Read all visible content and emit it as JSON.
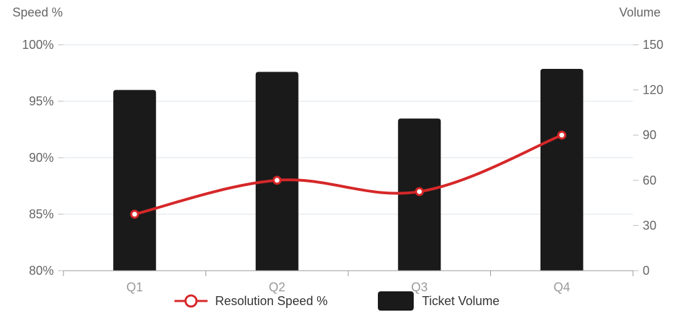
{
  "chart_data": {
    "type": "bar",
    "categories": [
      "Q1",
      "Q2",
      "Q3",
      "Q4"
    ],
    "y_left_title": "Speed %",
    "y_right_title": "Volume",
    "y_left_ticks": [
      "80%",
      "85%",
      "90%",
      "95%",
      "100%"
    ],
    "y_right_ticks": [
      "0",
      "30",
      "60",
      "90",
      "120",
      "150"
    ],
    "y_left_range": [
      80,
      100
    ],
    "y_right_range": [
      0,
      150
    ],
    "grid": true,
    "legend_position": "bottom",
    "series": [
      {
        "name": "Resolution Speed %",
        "type": "line",
        "axis": "left",
        "color": "#d62728",
        "smooth": true,
        "values": [
          85,
          88,
          87,
          92
        ]
      },
      {
        "name": "Ticket Volume",
        "type": "bar",
        "axis": "right",
        "color": "#1a1a1a",
        "values": [
          120,
          132,
          101,
          134
        ]
      }
    ]
  }
}
